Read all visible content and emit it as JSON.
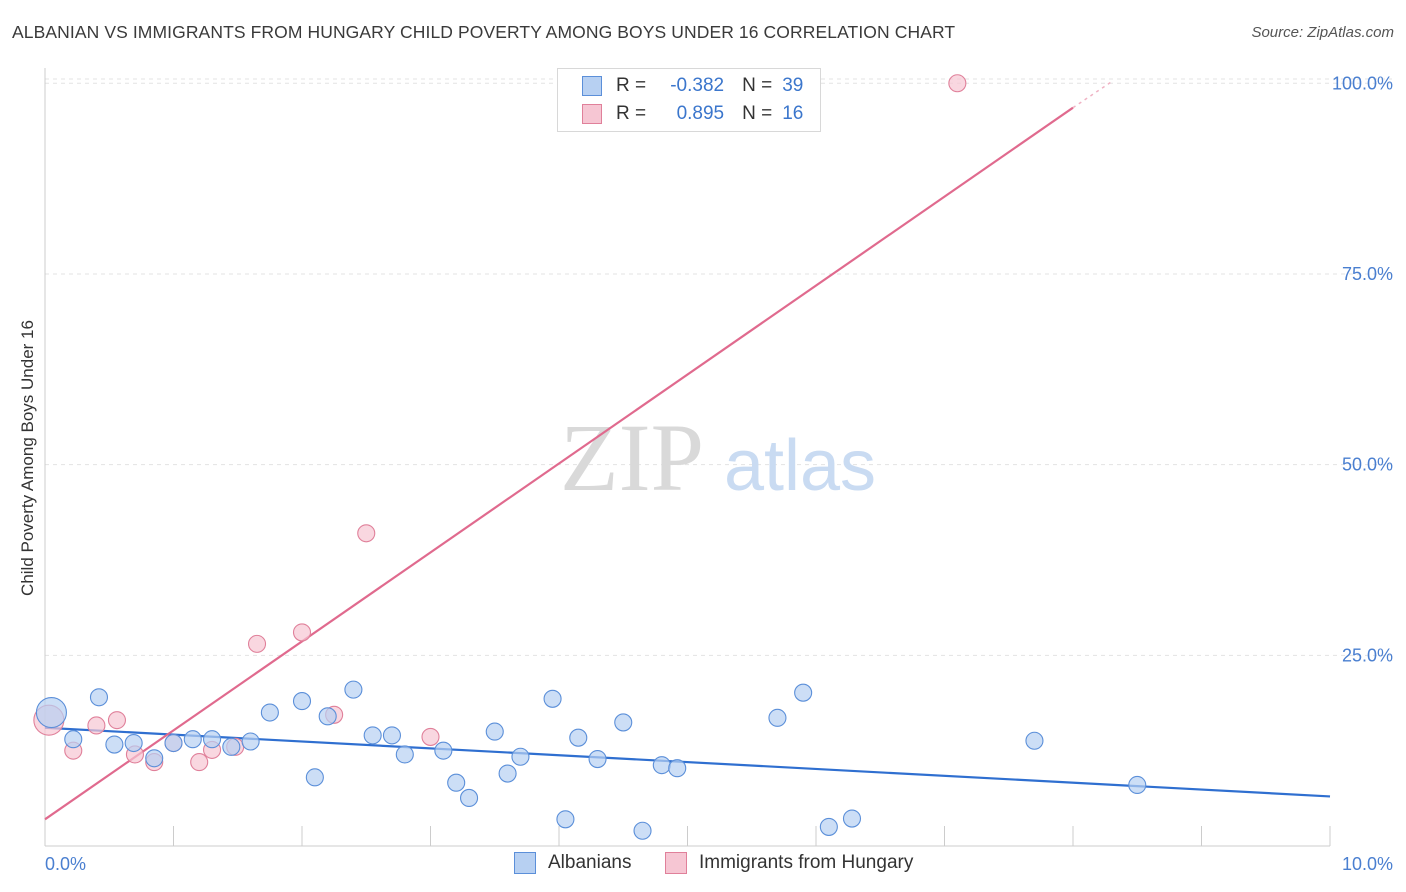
{
  "title": "ALBANIAN VS IMMIGRANTS FROM HUNGARY CHILD POVERTY AMONG BOYS UNDER 16 CORRELATION CHART",
  "source": "Source: ZipAtlas.com",
  "watermark": {
    "zip": "ZIP",
    "atlas": "atlas"
  },
  "legend": {
    "rows": [
      {
        "r_label": "R =",
        "r_value": "-0.382",
        "n_label": "N =",
        "n_value": "39"
      },
      {
        "r_label": "R =",
        "r_value": "0.895",
        "n_label": "N =",
        "n_value": "16"
      }
    ]
  },
  "bottom_legend": {
    "series1": "Albanians",
    "series2": "Immigrants from Hungary"
  },
  "chart_data": {
    "type": "scatter",
    "title": "ALBANIAN VS IMMIGRANTS FROM HUNGARY CHILD POVERTY AMONG BOYS UNDER 16 CORRELATION CHART",
    "xlabel": "",
    "ylabel": "Child Poverty Among Boys Under 16",
    "xlim": [
      0,
      10
    ],
    "ylim": [
      0,
      102
    ],
    "x_tick_labels": [
      "0.0%",
      "10.0%"
    ],
    "y_ticks": [
      25,
      50,
      75,
      100
    ],
    "y_tick_labels": [
      "25.0%",
      "50.0%",
      "75.0%",
      "100.0%"
    ],
    "series": [
      {
        "name": "Albanians",
        "color": "#5b8fd9",
        "fill": "#b7d0f2",
        "r": -0.382,
        "n": 39,
        "trend": {
          "x0": 0,
          "y0": 15.5,
          "x1": 10,
          "y1": 6.5
        },
        "points": [
          [
            0.05,
            17.5
          ],
          [
            0.22,
            14.0
          ],
          [
            0.42,
            19.5
          ],
          [
            0.54,
            13.3
          ],
          [
            0.69,
            13.5
          ],
          [
            0.85,
            11.5
          ],
          [
            1.0,
            13.5
          ],
          [
            1.15,
            14.0
          ],
          [
            1.3,
            14.0
          ],
          [
            1.45,
            13.0
          ],
          [
            1.6,
            13.7
          ],
          [
            1.75,
            17.5
          ],
          [
            2.0,
            19.0
          ],
          [
            2.1,
            9.0
          ],
          [
            2.2,
            17.0
          ],
          [
            2.4,
            20.5
          ],
          [
            2.55,
            14.5
          ],
          [
            2.7,
            14.5
          ],
          [
            2.8,
            12.0
          ],
          [
            3.1,
            12.5
          ],
          [
            3.2,
            8.3
          ],
          [
            3.3,
            6.3
          ],
          [
            3.5,
            15.0
          ],
          [
            3.6,
            9.5
          ],
          [
            3.7,
            11.7
          ],
          [
            3.95,
            19.3
          ],
          [
            4.05,
            3.5
          ],
          [
            4.15,
            14.2
          ],
          [
            4.3,
            11.4
          ],
          [
            4.5,
            16.2
          ],
          [
            4.65,
            2.0
          ],
          [
            4.8,
            10.6
          ],
          [
            4.92,
            10.2
          ],
          [
            5.7,
            16.8
          ],
          [
            5.9,
            20.1
          ],
          [
            6.1,
            2.5
          ],
          [
            6.28,
            3.6
          ],
          [
            7.7,
            13.8
          ],
          [
            8.5,
            8.0
          ]
        ]
      },
      {
        "name": "Immigrants from Hungary",
        "color": "#e0809a",
        "fill": "#f6c6d3",
        "r": 0.895,
        "n": 16,
        "trend": {
          "x0": 0,
          "y0": 3.5,
          "x1": 8.0,
          "y1": 96.8,
          "dash_to": {
            "x": 8.3,
            "y": 100.2
          }
        },
        "points": [
          [
            0.03,
            16.5
          ],
          [
            0.22,
            12.5
          ],
          [
            0.4,
            15.8
          ],
          [
            0.56,
            16.5
          ],
          [
            0.7,
            12.0
          ],
          [
            0.85,
            11.0
          ],
          [
            1.0,
            13.5
          ],
          [
            1.2,
            11.0
          ],
          [
            1.3,
            12.6
          ],
          [
            1.48,
            13.0
          ],
          [
            1.65,
            26.5
          ],
          [
            2.0,
            28.0
          ],
          [
            2.25,
            17.2
          ],
          [
            2.5,
            41.0
          ],
          [
            3.0,
            14.3
          ],
          [
            7.1,
            100.0
          ]
        ]
      }
    ]
  }
}
